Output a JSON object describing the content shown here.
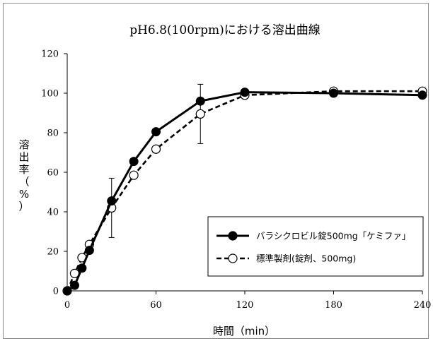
{
  "chart_data": {
    "type": "line",
    "title": "pH6.8(100rpm)における溶出曲線",
    "xlabel": "時間（min）",
    "ylabel": "溶出率（%）",
    "ylabel_chars": [
      "溶",
      "出",
      "率",
      "（",
      "%",
      "）"
    ],
    "x_ticks": [
      "0",
      "60",
      "120",
      "180",
      "240"
    ],
    "y_ticks": [
      "0",
      "20",
      "40",
      "60",
      "80",
      "100",
      "120"
    ],
    "xlim": [
      0,
      240
    ],
    "ylim": [
      0,
      120
    ],
    "grid": false,
    "legend_position": "bottom-right",
    "series": [
      {
        "name": "バラシクロビル錠500mg「ケミファ」",
        "style": "solid",
        "marker": "filled-circle",
        "color": "#000000",
        "x": [
          0,
          5,
          10,
          15,
          30,
          45,
          60,
          90,
          120,
          180,
          240
        ],
        "y": [
          0,
          2.8,
          11.5,
          20.5,
          45.5,
          65.5,
          80.5,
          96,
          100.5,
          100,
          99
        ]
      },
      {
        "name": "標準製剤(錠剤、500mg)",
        "style": "dashed",
        "marker": "open-circle",
        "color": "#000000",
        "x": [
          0,
          5,
          10,
          15,
          30,
          45,
          60,
          90,
          120,
          180,
          240
        ],
        "y": [
          0,
          8.8,
          16.8,
          23.5,
          42,
          58.5,
          71.7,
          89.5,
          99,
          101,
          101
        ]
      }
    ],
    "error_bars": [
      {
        "x": 30,
        "low": 27,
        "high": 57
      },
      {
        "x": 90,
        "low": 74.5,
        "high": 104.5
      }
    ]
  }
}
